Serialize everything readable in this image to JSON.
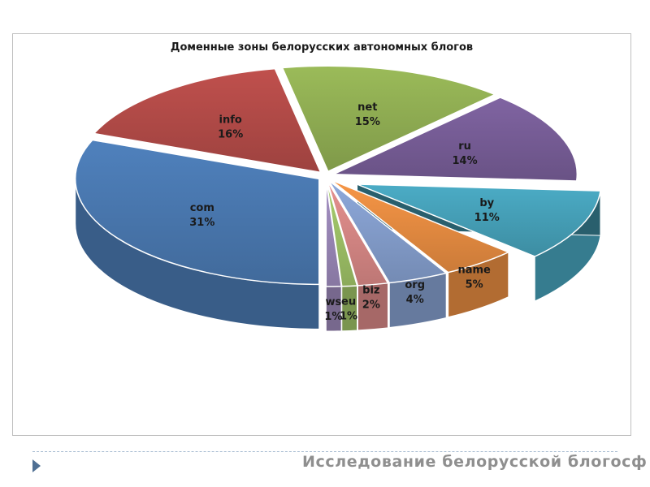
{
  "chart_data": {
    "type": "pie",
    "title": "Доменные зоны белорусских автономных блогов",
    "categories": [
      "com",
      "info",
      "net",
      "ru",
      "by",
      "name",
      "org",
      "biz",
      "eu",
      "ws"
    ],
    "values": [
      31,
      16,
      15,
      14,
      11,
      5,
      4,
      2,
      1,
      1
    ],
    "labels": [
      "31%",
      "16%",
      "15%",
      "14%",
      "11%",
      "5%",
      "4%",
      "2%",
      "1%",
      "1%"
    ],
    "colors": [
      "#4f81bd",
      "#c0504d",
      "#9bbb59",
      "#8064a2",
      "#4bacc6",
      "#f79646",
      "#8ea9db",
      "#e6918f",
      "#a9cf6e",
      "#a591c4"
    ],
    "exploded": [
      "by"
    ],
    "style": "3d",
    "legend": "none"
  },
  "footer": {
    "text": "Исследование белорусской блогосф"
  }
}
